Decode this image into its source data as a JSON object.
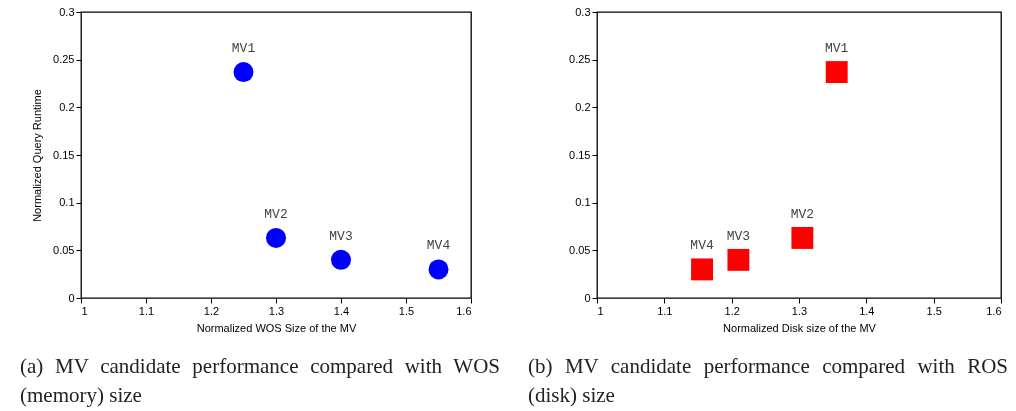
{
  "chart_data": [
    {
      "type": "scatter",
      "xlabel": "Normalized WOS Size of the MV",
      "ylabel": "Normalized Query Runtime",
      "x": [
        1.25,
        1.3,
        1.4,
        1.55
      ],
      "series": [
        {
          "color": "#0000ff",
          "values": [
            0.237,
            0.063,
            0.04,
            0.03
          ]
        }
      ],
      "marker": "circle",
      "xlim": [
        1,
        1.6
      ],
      "xticks": [
        1,
        1.1,
        1.2,
        1.3,
        1.4,
        1.5,
        1.6
      ],
      "ylim": [
        0,
        0.3
      ],
      "yticks": [
        0,
        0.05,
        0.1,
        0.15,
        0.2,
        0.25,
        0.3
      ],
      "annotations": [
        {
          "text": "MV1",
          "x": 1.25,
          "y": 0.237
        },
        {
          "text": "MV2",
          "x": 1.3,
          "y": 0.063
        },
        {
          "text": "MV3",
          "x": 1.4,
          "y": 0.04
        },
        {
          "text": "MV4",
          "x": 1.55,
          "y": 0.03
        },
        "(a) MV candidate performance compared with WOS (memory) size"
      ]
    },
    {
      "type": "scatter",
      "xlabel": "Normalized Disk size of the MV",
      "x": [
        1.356,
        1.305,
        1.21,
        1.156
      ],
      "series": [
        {
          "color": "#ff0000",
          "values": [
            0.237,
            0.063,
            0.04,
            0.03
          ]
        }
      ],
      "marker": "square",
      "xlim": [
        1,
        1.6
      ],
      "xticks": [
        1,
        1.1,
        1.2,
        1.3,
        1.4,
        1.5,
        1.6
      ],
      "ylim": [
        0,
        0.3
      ],
      "yticks": [
        0,
        0.05,
        0.1,
        0.15,
        0.2,
        0.25,
        0.3
      ],
      "annotations": [
        {
          "text": "MV1",
          "x": 1.356,
          "y": 0.237
        },
        {
          "text": "MV2",
          "x": 1.305,
          "y": 0.063
        },
        {
          "text": "MV3",
          "x": 1.21,
          "y": 0.04
        },
        {
          "text": "MV4",
          "x": 1.156,
          "y": 0.03
        },
        "(b) MV candidate performance compared with ROS (disk) size"
      ]
    }
  ]
}
